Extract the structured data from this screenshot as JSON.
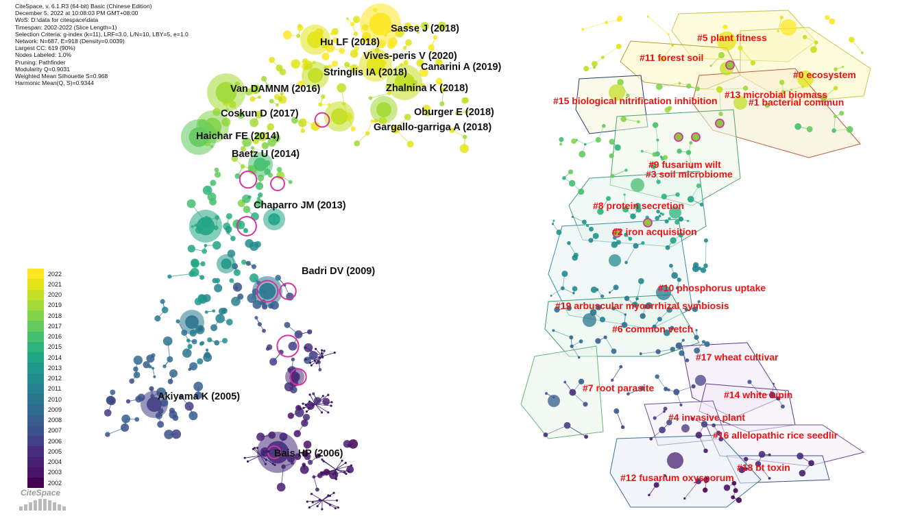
{
  "info_lines": [
    "CiteSpace, v. 6.1.R3 (64-bit) Basic (Chinese Edition)",
    "December 5, 2022 at 10:08:03 PM GMT+08:00",
    "WoS: D:\\data for citespace\\data",
    "Timespan: 2002-2022 (Slice Length=1)",
    "Selection Criteria: g-index (k=11), LRF=3.0, L/N=10, LBY=5, e=1.0",
    "Network: N=687, E=918 (Density=0.0039)",
    "Largest CC: 619 (90%)",
    "Nodes Labeled: 1.0%",
    "Pruning: Pathfinder",
    "Modularity Q=0.9031",
    "Weighted Mean Silhouette S=0.968",
    "Harmonic Mean(Q, S)=0.9344"
  ],
  "reference_labels": [
    "Sasse J (2018)",
    "Hu LF (2018)",
    "Vives-peris V (2020)",
    "Canarini A (2019)",
    "Stringlis IA (2018)",
    "Zhalnina K (2018)",
    "Van DAMNM (2016)",
    "Oburger E (2018)",
    "Coskun D (2017)",
    "Gargallo-garriga A (2018)",
    "Haichar FE (2014)",
    "Baetz U (2014)",
    "Chaparro JM (2013)",
    "Badri DV (2009)",
    "Akiyama K (2005)",
    "Bais HP (2006)"
  ],
  "cluster_labels": [
    "#5 plant fitness",
    "#11 forest soil",
    "#0 ecosystem",
    "#13 microbial biomass",
    "#15 biological nitrification inhibition",
    "#1 bacterial commun",
    "#9 fusarium wilt",
    "#3 soil microbiome",
    "#8 protein secretion",
    "#2 iron acquisition",
    "#10 phosphorus uptake",
    "#19 arbuscular mycorrhizal symbiosis",
    "#6 common vetch",
    "#17 wheat cultivar",
    "#7 root parasite",
    "#14 white lupin",
    "#4 invasive plant",
    "#16 allelopathic rice seedlir",
    "#18 bt toxin",
    "#12 fusarium oxysporum"
  ],
  "legend": {
    "years": [
      "2022",
      "2021",
      "2020",
      "2019",
      "2018",
      "2017",
      "2016",
      "2015",
      "2014",
      "2013",
      "2012",
      "2011",
      "2010",
      "2009",
      "2008",
      "2007",
      "2006",
      "2005",
      "2004",
      "2003",
      "2002"
    ],
    "colors": [
      "#fde725",
      "#e2e418",
      "#c2df23",
      "#a2da37",
      "#84d44b",
      "#63cb5f",
      "#44bf70",
      "#2db27d",
      "#21a585",
      "#1f988b",
      "#228c8d",
      "#26818e",
      "#2a768e",
      "#2f6b8e",
      "#355e8d",
      "#3b528b",
      "#424086",
      "#472e7c",
      "#482072",
      "#481467",
      "#440154"
    ]
  },
  "logo_text": "CiteSpace"
}
